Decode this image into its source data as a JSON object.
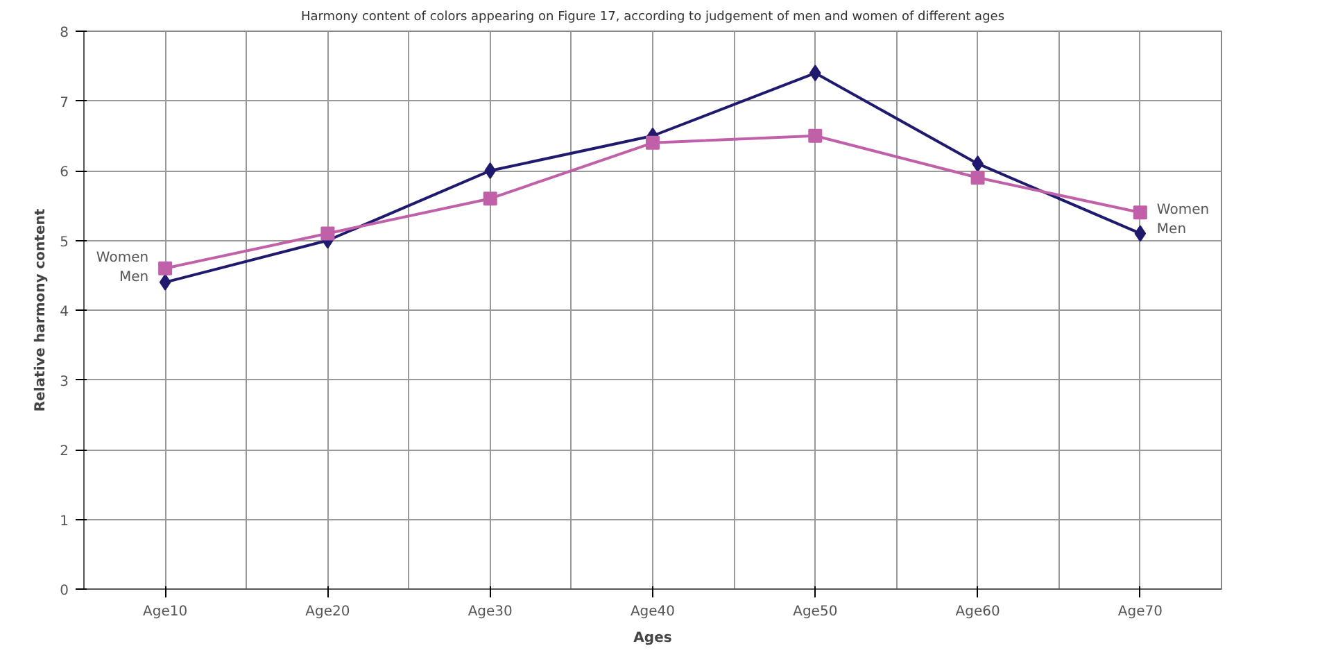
{
  "chart_data": {
    "type": "line",
    "title": "Harmony content of colors appearing on Figure 17, according to judgement of men and women of different ages",
    "xlabel": "Ages",
    "ylabel": "Relative harmony content",
    "categories": [
      "Age10",
      "Age20",
      "Age30",
      "Age40",
      "Age50",
      "Age60",
      "Age70"
    ],
    "series": [
      {
        "name": "Men",
        "color": "#1f1a6e",
        "marker": "diamond",
        "values": [
          4.4,
          5.0,
          6.0,
          6.5,
          7.4,
          6.1,
          5.1
        ]
      },
      {
        "name": "Women",
        "color": "#c060a8",
        "marker": "square",
        "values": [
          4.6,
          5.1,
          5.6,
          6.4,
          6.5,
          5.9,
          5.4
        ]
      }
    ],
    "ylim": [
      0,
      8
    ],
    "yticks": [
      0,
      1,
      2,
      3,
      4,
      5,
      6,
      7,
      8
    ],
    "grid": true,
    "legend": false
  }
}
